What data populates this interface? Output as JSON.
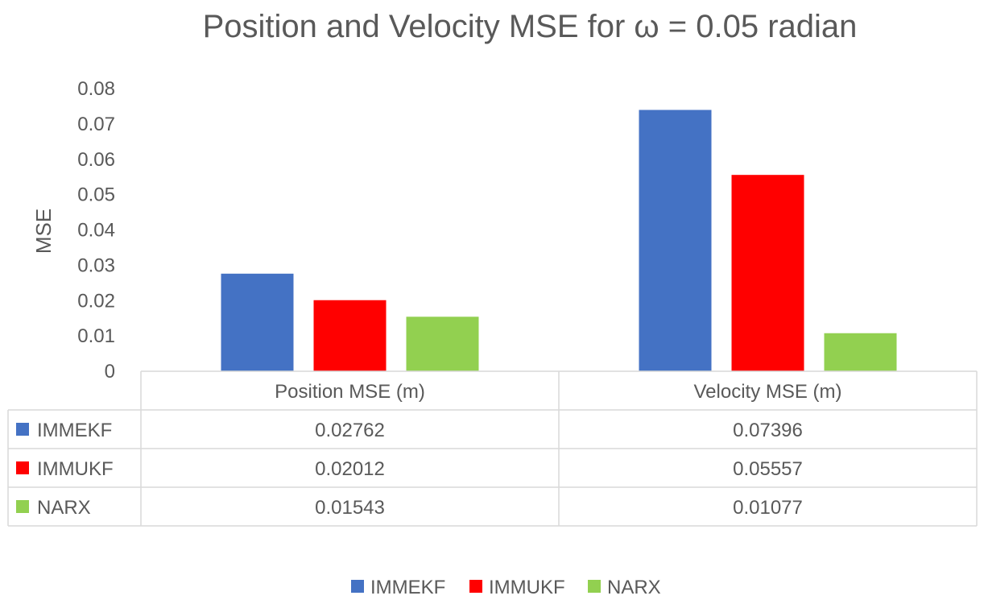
{
  "chart_data": {
    "type": "bar",
    "title": "Position and Velocity MSE for ω = 0.05 radian",
    "ylabel": "MSE",
    "xlabel": "",
    "categories": [
      "Position MSE (m)",
      "Velocity MSE (m)"
    ],
    "ylim": [
      0,
      0.08
    ],
    "yticks": [
      "0",
      "0.01",
      "0.02",
      "0.03",
      "0.04",
      "0.05",
      "0.06",
      "0.07",
      "0.08"
    ],
    "series": [
      {
        "name": "IMMEKF",
        "color": "#4472c4",
        "values": [
          0.02762,
          0.07396
        ],
        "labels": [
          "0.02762",
          "0.07396"
        ]
      },
      {
        "name": "IMMUKF",
        "color": "#ff0000",
        "values": [
          0.02012,
          0.05557
        ],
        "labels": [
          "0.02012",
          "0.05557"
        ]
      },
      {
        "name": "NARX",
        "color": "#92d050",
        "values": [
          0.01543,
          0.01077
        ],
        "labels": [
          "0.01543",
          "0.01077"
        ]
      }
    ],
    "data_table": true,
    "legend_position": "bottom",
    "grid": false
  }
}
